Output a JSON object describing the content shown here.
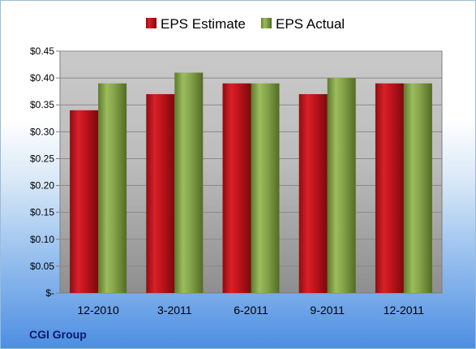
{
  "chart_data": {
    "type": "bar",
    "categories": [
      "12-2010",
      "3-2011",
      "6-2011",
      "9-2011",
      "12-2011"
    ],
    "series": [
      {
        "name": "EPS Estimate",
        "values": [
          0.34,
          0.37,
          0.39,
          0.37,
          0.39
        ],
        "color": "#c0141b"
      },
      {
        "name": "EPS Actual",
        "values": [
          0.39,
          0.41,
          0.39,
          0.4,
          0.39
        ],
        "color": "#86a54a"
      }
    ],
    "yticks": [
      "$-",
      "$0.05",
      "$0.10",
      "$0.15",
      "$0.20",
      "$0.25",
      "$0.30",
      "$0.35",
      "$0.40",
      "$0.45"
    ],
    "ylim": [
      0,
      0.45
    ],
    "grid": true,
    "legend_position": "top",
    "source": "CGI Group"
  }
}
